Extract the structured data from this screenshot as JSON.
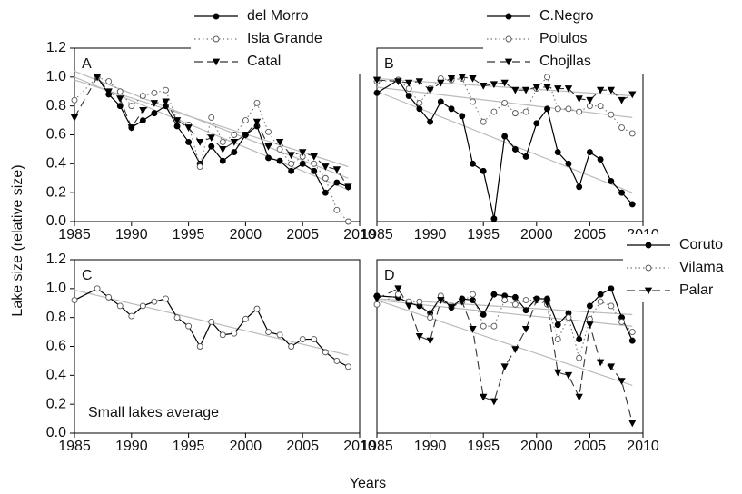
{
  "ylabel": "Lake size (relative size)",
  "xlabel": "Years",
  "chart_data": [
    {
      "type": "line",
      "panel": "A",
      "legend": "top-right",
      "xlim": [
        1985,
        2010
      ],
      "xticks": [
        1985,
        1990,
        1995,
        2000,
        2005,
        2010
      ],
      "ylim": [
        0,
        1.2
      ],
      "yticks": [
        {
          "value": 0,
          "label": "0.0"
        },
        {
          "value": 0.2,
          "label": "0.2"
        },
        {
          "value": 0.4,
          "label": "0.4"
        },
        {
          "value": 0.6,
          "label": "0.6"
        },
        {
          "value": 0.8,
          "label": "0.8"
        },
        {
          "value": 1,
          "label": "1.0"
        },
        {
          "value": 1.2,
          "label": "1.2"
        }
      ],
      "x": [
        1985,
        1987,
        1988,
        1989,
        1990,
        1991,
        1992,
        1993,
        1994,
        1995,
        1996,
        1997,
        1998,
        1999,
        2000,
        2001,
        2002,
        2003,
        2004,
        2005,
        2006,
        2007,
        2008,
        2009
      ],
      "series": [
        {
          "name": "del Morro",
          "color": "#000000",
          "marker": "filled-circle",
          "line": "solid",
          "trend": [
            1.0,
            0.22
          ],
          "values": [
            null,
            1.0,
            0.88,
            0.8,
            0.65,
            0.7,
            0.75,
            0.8,
            0.66,
            0.55,
            0.4,
            0.52,
            0.42,
            0.48,
            0.6,
            0.66,
            0.44,
            0.42,
            0.35,
            0.4,
            0.35,
            0.2,
            0.27,
            0.24
          ]
        },
        {
          "name": "Isla Grande",
          "color": "#777777",
          "marker": "open-circle",
          "line": "dotted",
          "trend": [
            1.04,
            0.3
          ],
          "values": [
            0.84,
            1.0,
            0.97,
            0.9,
            0.8,
            0.87,
            0.89,
            0.91,
            0.7,
            0.67,
            0.38,
            0.72,
            0.55,
            0.6,
            0.7,
            0.82,
            0.62,
            0.5,
            0.4,
            0.45,
            0.4,
            0.3,
            0.08,
            0.0
          ]
        },
        {
          "name": "Catal",
          "color": "#333333",
          "marker": "triangle",
          "line": "dashed",
          "trend": [
            0.98,
            0.38
          ],
          "values": [
            0.72,
            1.0,
            0.9,
            0.85,
            0.65,
            0.77,
            0.82,
            0.83,
            0.7,
            0.65,
            0.55,
            0.58,
            0.5,
            0.55,
            0.6,
            0.69,
            0.52,
            0.55,
            0.46,
            0.48,
            0.45,
            0.38,
            0.36,
            0.24
          ]
        }
      ]
    },
    {
      "type": "line",
      "panel": "B",
      "legend": "top-right",
      "xlim": [
        1985,
        2010
      ],
      "xticks": [
        1985,
        1990,
        1995,
        2000,
        2005,
        2010
      ],
      "ylim": [
        0,
        1.2
      ],
      "x": [
        1985,
        1987,
        1988,
        1989,
        1990,
        1991,
        1992,
        1993,
        1994,
        1995,
        1996,
        1997,
        1998,
        1999,
        2000,
        2001,
        2002,
        2003,
        2004,
        2005,
        2006,
        2007,
        2008,
        2009
      ],
      "series": [
        {
          "name": "C.Negro",
          "color": "#000000",
          "marker": "filled-circle",
          "line": "solid",
          "trend": [
            0.9,
            0.2
          ],
          "values": [
            0.89,
            0.98,
            0.87,
            0.78,
            0.69,
            0.83,
            0.78,
            0.73,
            0.4,
            0.35,
            0.02,
            0.59,
            0.5,
            0.45,
            0.68,
            0.78,
            0.48,
            0.4,
            0.24,
            0.48,
            0.43,
            0.28,
            0.2,
            0.12
          ]
        },
        {
          "name": "Polulos",
          "color": "#777777",
          "marker": "open-circle",
          "line": "dotted",
          "trend": [
            0.93,
            0.72
          ],
          "values": [
            0.97,
            0.98,
            0.92,
            0.82,
            0.92,
            0.99,
            0.98,
            0.99,
            0.83,
            0.69,
            0.76,
            0.82,
            0.75,
            0.76,
            0.92,
            1.0,
            0.78,
            0.78,
            0.76,
            0.8,
            0.8,
            0.74,
            0.65,
            0.61
          ]
        },
        {
          "name": "Chojllas",
          "color": "#333333",
          "marker": "triangle",
          "line": "dashed",
          "trend": [
            0.99,
            0.87
          ],
          "values": [
            0.98,
            0.97,
            0.96,
            0.97,
            0.91,
            0.96,
            0.99,
            1.0,
            0.99,
            0.94,
            0.95,
            0.96,
            0.91,
            0.91,
            0.93,
            0.93,
            0.92,
            0.92,
            0.85,
            0.84,
            0.91,
            0.91,
            0.84,
            0.88
          ]
        }
      ]
    },
    {
      "type": "line",
      "panel": "C",
      "annotation": "Small lakes average",
      "xlim": [
        1985,
        2010
      ],
      "xticks": [
        1985,
        1990,
        1995,
        2000,
        2005,
        2010
      ],
      "ylim": [
        0,
        1.2
      ],
      "yticks": [
        {
          "value": 0,
          "label": "0.0"
        },
        {
          "value": 0.2,
          "label": "0.2"
        },
        {
          "value": 0.4,
          "label": "0.4"
        },
        {
          "value": 0.6,
          "label": "0.6"
        },
        {
          "value": 0.8,
          "label": "0.8"
        },
        {
          "value": 1,
          "label": "1.0"
        },
        {
          "value": 1.2,
          "label": "1.2"
        }
      ],
      "x": [
        1985,
        1987,
        1988,
        1989,
        1990,
        1991,
        1992,
        1993,
        1994,
        1995,
        1996,
        1997,
        1998,
        1999,
        2000,
        2001,
        2002,
        2003,
        2004,
        2005,
        2006,
        2007,
        2008,
        2009
      ],
      "series": [
        {
          "color": "#000000",
          "marker": "open-circle",
          "line": "solid",
          "trend": [
            0.99,
            0.54
          ],
          "values": [
            0.92,
            1.0,
            0.94,
            0.88,
            0.81,
            0.88,
            0.91,
            0.93,
            0.8,
            0.74,
            0.6,
            0.77,
            0.68,
            0.69,
            0.79,
            0.86,
            0.7,
            0.68,
            0.6,
            0.65,
            0.65,
            0.56,
            0.5,
            0.46
          ]
        }
      ]
    },
    {
      "type": "line",
      "panel": "D",
      "legend": "right",
      "xlim": [
        1985,
        2010
      ],
      "xticks": [
        1985,
        1990,
        1995,
        2000,
        2005,
        2010
      ],
      "ylim": [
        0,
        1.2
      ],
      "x": [
        1985,
        1987,
        1988,
        1989,
        1990,
        1991,
        1992,
        1993,
        1994,
        1995,
        1996,
        1997,
        1998,
        1999,
        2000,
        2001,
        2002,
        2003,
        2004,
        2005,
        2006,
        2007,
        2008,
        2009
      ],
      "series": [
        {
          "name": "Coruto",
          "color": "#000000",
          "marker": "filled-circle",
          "line": "solid",
          "trend": [
            0.93,
            0.82
          ],
          "values": [
            0.95,
            0.94,
            0.9,
            0.88,
            0.83,
            0.94,
            0.87,
            0.93,
            0.92,
            0.82,
            0.96,
            0.95,
            0.94,
            0.85,
            0.93,
            0.93,
            0.75,
            0.83,
            0.65,
            0.88,
            0.96,
            1.0,
            0.8,
            0.64
          ]
        },
        {
          "name": "Vilama",
          "color": "#777777",
          "marker": "open-circle",
          "line": "dotted",
          "trend": [
            0.92,
            0.74
          ],
          "values": [
            0.89,
            0.96,
            0.91,
            0.91,
            0.8,
            0.95,
            0.88,
            0.91,
            0.96,
            0.74,
            0.74,
            0.92,
            0.89,
            0.92,
            0.92,
            0.89,
            0.65,
            0.8,
            0.52,
            0.79,
            0.91,
            0.88,
            0.77,
            0.7
          ]
        },
        {
          "name": "Palar",
          "color": "#333333",
          "marker": "triangle",
          "line": "dashed",
          "trend": [
            0.92,
            0.33
          ],
          "values": [
            0.93,
            1.0,
            0.88,
            0.67,
            0.64,
            0.92,
            0.87,
            0.91,
            0.72,
            0.25,
            0.22,
            0.46,
            0.58,
            0.72,
            0.92,
            0.9,
            0.42,
            0.4,
            0.25,
            0.75,
            0.49,
            0.46,
            0.36,
            0.07
          ]
        }
      ]
    }
  ]
}
